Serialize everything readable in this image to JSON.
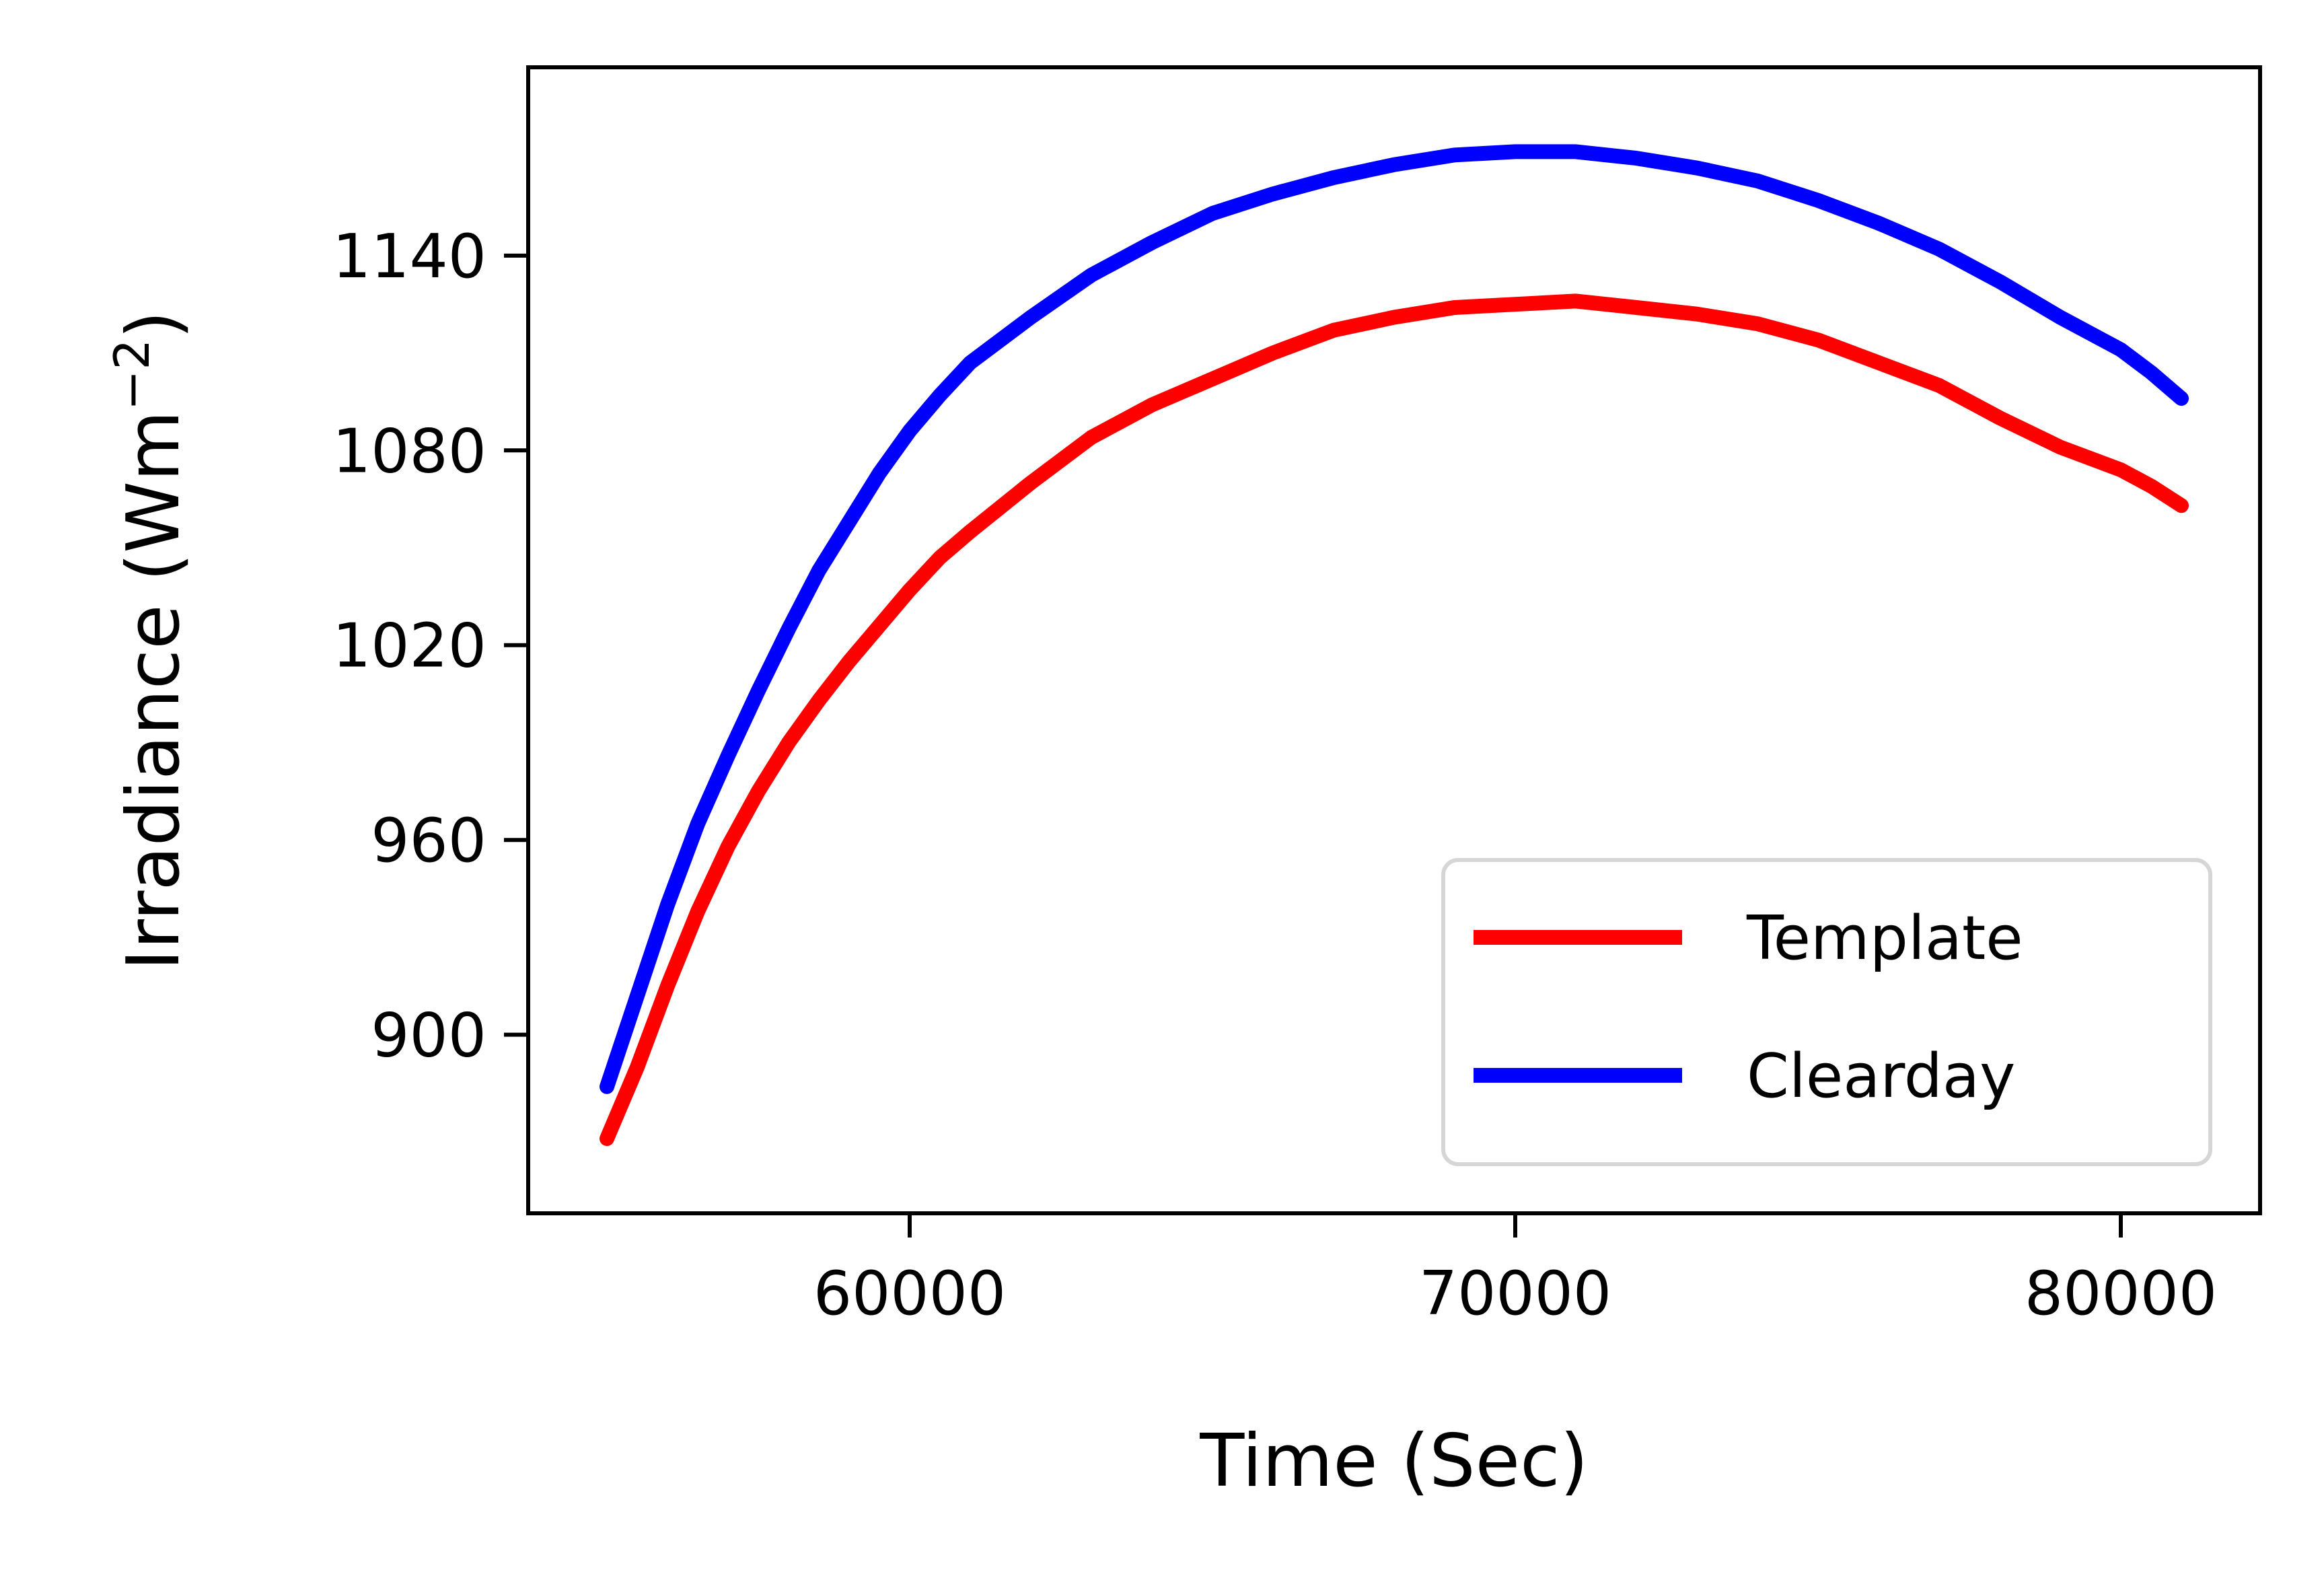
{
  "chart_data": {
    "type": "line",
    "title": "",
    "xlabel": "Time (Sec)",
    "ylabel_main": "Irradiance (Wm",
    "ylabel_sup": "−2",
    "ylabel_close": ")",
    "xlim": [
      53700,
      82300
    ],
    "ylim": [
      845,
      1198
    ],
    "xticks": [
      60000,
      70000,
      80000
    ],
    "xtick_labels": [
      "60000",
      "70000",
      "80000"
    ],
    "yticks": [
      900,
      960,
      1020,
      1080,
      1140
    ],
    "ytick_labels": [
      "900",
      "960",
      "1020",
      "1080",
      "1140"
    ],
    "grid": false,
    "legend_position": "lower-right",
    "series": [
      {
        "name": "Template",
        "color": "#ff0000",
        "x": [
          55000,
          55500,
          56000,
          56500,
          57000,
          57500,
          58000,
          58500,
          59000,
          59500,
          60000,
          60500,
          61000,
          62000,
          63000,
          64000,
          65000,
          66000,
          67000,
          68000,
          69000,
          70000,
          71000,
          72000,
          73000,
          74000,
          75000,
          76000,
          77000,
          78000,
          79000,
          80000,
          80500,
          81000
        ],
        "y": [
          868,
          890,
          915,
          938,
          958,
          975,
          990,
          1003,
          1015,
          1026,
          1037,
          1047,
          1055,
          1070,
          1084,
          1094,
          1102,
          1110,
          1117,
          1121,
          1124,
          1125,
          1126,
          1124,
          1122,
          1119,
          1114,
          1107,
          1100,
          1090,
          1081,
          1074,
          1069,
          1063
        ]
      },
      {
        "name": "Clearday",
        "color": "#0000ff",
        "x": [
          55000,
          55500,
          56000,
          56500,
          57000,
          57500,
          58000,
          58500,
          59000,
          59500,
          60000,
          60500,
          61000,
          62000,
          63000,
          64000,
          65000,
          66000,
          67000,
          68000,
          69000,
          70000,
          71000,
          72000,
          73000,
          74000,
          75000,
          76000,
          77000,
          78000,
          79000,
          80000,
          80500,
          81000
        ],
        "y": [
          884,
          912,
          940,
          965,
          986,
          1006,
          1025,
          1043,
          1058,
          1073,
          1086,
          1097,
          1107,
          1121,
          1134,
          1144,
          1153,
          1159,
          1164,
          1168,
          1171,
          1172,
          1172,
          1170,
          1167,
          1163,
          1157,
          1150,
          1142,
          1132,
          1121,
          1111,
          1104,
          1096
        ]
      }
    ]
  }
}
